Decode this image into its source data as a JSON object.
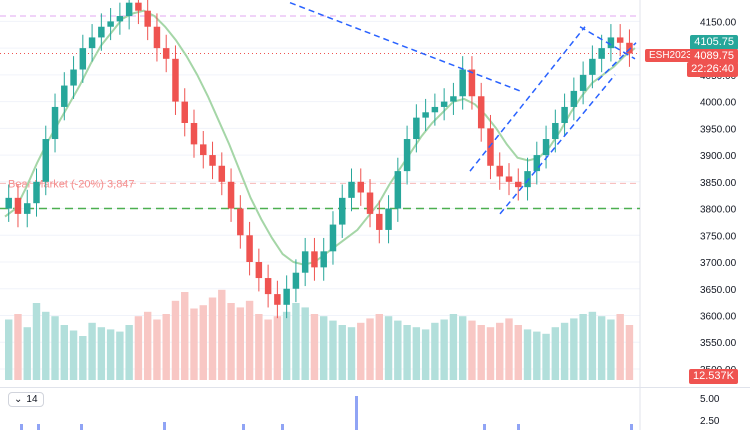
{
  "chart_data": {
    "type": "candlestick",
    "symbol": "ESH2023",
    "last_price": "4089.75",
    "countdown": "22:26:40",
    "green_tag": "4105.75",
    "volume_tag": "12.537K",
    "bear_market_label": "Bear Market (-20%) 3,847",
    "levels": {
      "upper_dashed": 4160,
      "bear_market": 3847,
      "support_green": 3800
    },
    "y_ticks": [
      "4150.00",
      "4100.00",
      "4050.00",
      "4000.00",
      "3950.00",
      "3900.00",
      "3850.00",
      "3800.00",
      "3750.00",
      "3700.00",
      "3650.00",
      "3600.00",
      "3550.00",
      "3500.00"
    ],
    "ylim": [
      3470,
      4190
    ],
    "sub_ticks": [
      "5.00",
      "2.50"
    ],
    "indicator_label": "14",
    "ma_line": [
      3785,
      3800,
      3840,
      3885,
      3925,
      3960,
      3995,
      4030,
      4070,
      4105,
      4130,
      4155,
      4165,
      4170,
      4160,
      4140,
      4115,
      4085,
      4050,
      4010,
      3965,
      3920,
      3870,
      3820,
      3780,
      3745,
      3715,
      3700,
      3695,
      3700,
      3715,
      3730,
      3745,
      3760,
      3785,
      3810,
      3845,
      3875,
      3905,
      3935,
      3960,
      3980,
      4000,
      4005,
      3995,
      3975,
      3950,
      3920,
      3895,
      3890,
      3895,
      3915,
      3945,
      3980,
      4010,
      4035,
      4050,
      4065,
      4085,
      4100
    ],
    "closes": [
      3820,
      3790,
      3810,
      3850,
      3930,
      3990,
      4030,
      4060,
      4100,
      4120,
      4140,
      4150,
      4160,
      4185,
      4170,
      4140,
      4100,
      4080,
      4000,
      3960,
      3920,
      3900,
      3880,
      3850,
      3800,
      3750,
      3700,
      3670,
      3640,
      3620,
      3650,
      3680,
      3720,
      3690,
      3720,
      3770,
      3820,
      3850,
      3830,
      3790,
      3760,
      3800,
      3870,
      3930,
      3970,
      3980,
      3990,
      4000,
      4010,
      4060,
      4010,
      3950,
      3880,
      3860,
      3850,
      3840,
      3870,
      3900,
      3930,
      3960,
      3990,
      4020,
      4050,
      4080,
      4100,
      4120,
      4110,
      4090
    ],
    "volumes": [
      55,
      60,
      48,
      70,
      62,
      58,
      50,
      45,
      40,
      52,
      48,
      46,
      44,
      50,
      58,
      62,
      55,
      60,
      72,
      80,
      65,
      68,
      75,
      82,
      70,
      66,
      72,
      60,
      55,
      58,
      62,
      70,
      66,
      60,
      58,
      54,
      50,
      48,
      52,
      56,
      60,
      58,
      54,
      50,
      48,
      46,
      52,
      55,
      60,
      58,
      54,
      50,
      48,
      52,
      56,
      50,
      46,
      44,
      42,
      48,
      52,
      56,
      60,
      62,
      58,
      55,
      60,
      50
    ]
  }
}
